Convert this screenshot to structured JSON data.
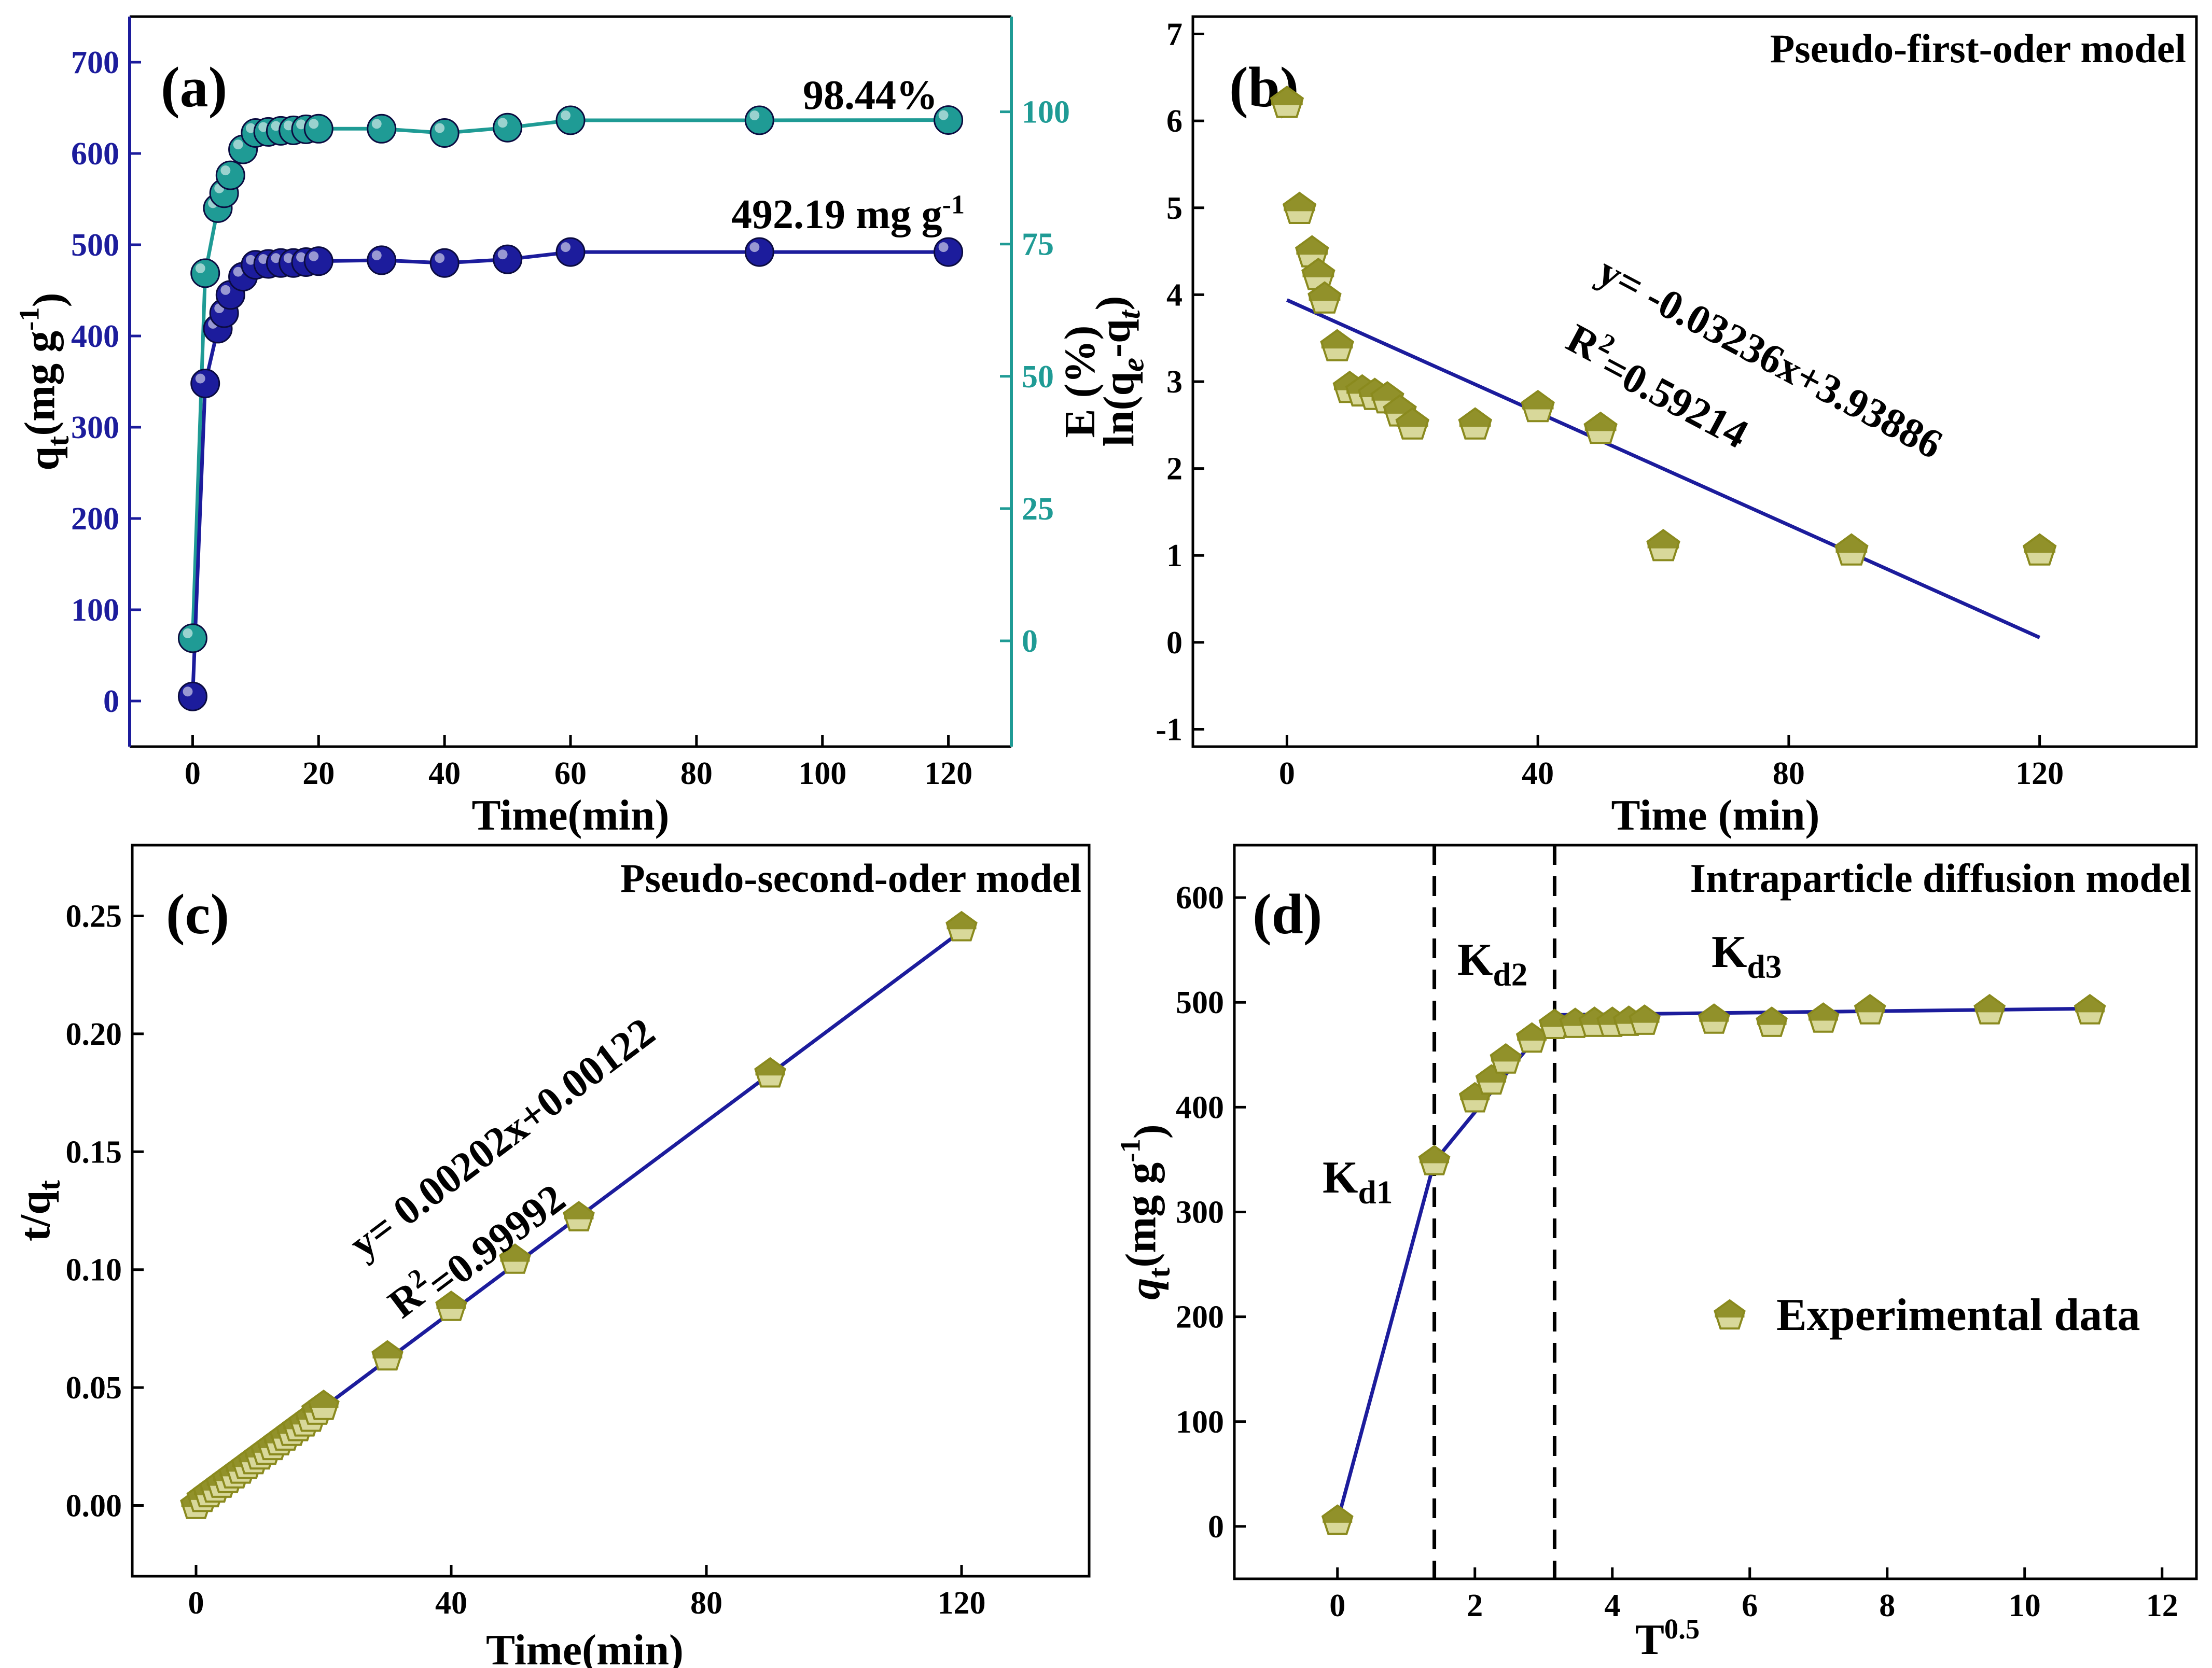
{
  "colors": {
    "navy": "#1c1c9c",
    "teal": "#1f9b95",
    "olive": "#8a8a1e",
    "olive_light": "#d8d89a",
    "frame": "#000000"
  },
  "chart_data": [
    {
      "id": "a",
      "type": "line",
      "panel_label": "(a)",
      "xlabel": "Time(min)",
      "ylabel_left": "q",
      "ylabel_left_sub": "t",
      "ylabel_left_unit": "(mg g",
      "ylabel_left_sup": "-1",
      "ylabel_left_close": ")",
      "ylabel_right": "E (%)",
      "xlim": [
        -10,
        130
      ],
      "ylim_left": [
        -50,
        750
      ],
      "ylim_right": [
        -20,
        118
      ],
      "xticks": [
        0,
        20,
        40,
        60,
        80,
        100,
        120
      ],
      "yticks_left": [
        0,
        100,
        200,
        300,
        400,
        500,
        600,
        700
      ],
      "yticks_right": [
        0,
        25,
        50,
        75,
        100
      ],
      "series": [
        {
          "axis": "left",
          "x": [
            0,
            2,
            4,
            5,
            6,
            8,
            10,
            12,
            14,
            16,
            18,
            20,
            30,
            40,
            50,
            60,
            90,
            120
          ],
          "values": [
            5,
            348,
            408,
            425,
            445,
            465,
            478,
            479,
            480,
            480,
            481,
            482,
            483,
            480,
            484,
            492,
            492,
            492
          ]
        },
        {
          "axis": "right",
          "x": [
            0,
            2,
            4,
            5,
            6,
            8,
            10,
            12,
            14,
            16,
            18,
            20,
            30,
            40,
            50,
            60,
            90,
            120
          ],
          "values": [
            0.5,
            69.5,
            81.8,
            84.6,
            88.0,
            92.9,
            96.0,
            96.2,
            96.4,
            96.5,
            96.7,
            96.8,
            96.8,
            96.0,
            97.0,
            98.4,
            98.4,
            98.44
          ]
        }
      ],
      "annotations": {
        "percent": "98.44%",
        "capacity": "492.19 mg g",
        "capacity_sup": "-1"
      }
    },
    {
      "id": "b",
      "type": "scatter",
      "panel_label": "(b)",
      "title": "Pseudo-first-oder model",
      "xlabel": "Time (min)",
      "ylabel": "ln(q",
      "ylabel_sub1": "e",
      "ylabel_mid": "-q",
      "ylabel_sub2": "t",
      "ylabel_close": ")",
      "xlim": [
        -15,
        145
      ],
      "ylim": [
        -1.2,
        7.2
      ],
      "xticks": [
        0,
        40,
        80,
        120
      ],
      "yticks": [
        -1,
        0,
        1,
        2,
        3,
        4,
        5,
        6,
        7
      ],
      "points": {
        "x": [
          0,
          2,
          4,
          5,
          6,
          8,
          10,
          12,
          14,
          16,
          18,
          20,
          30,
          40,
          50,
          60,
          90,
          120
        ],
        "y": [
          6.2,
          4.98,
          4.48,
          4.22,
          3.95,
          3.4,
          2.92,
          2.88,
          2.84,
          2.8,
          2.65,
          2.5,
          2.5,
          2.7,
          2.45,
          1.1,
          1.05,
          1.05
        ]
      },
      "fit": {
        "slope": -0.03236,
        "intercept": 3.93886,
        "x_range": [
          0,
          120
        ]
      },
      "equation": "y= -0.03236x+3.93886",
      "r2_label": "R",
      "r2_sup": "2",
      "r2_value": "=0.59214"
    },
    {
      "id": "c",
      "type": "scatter",
      "panel_label": "(c)",
      "title": "Pseudo-second-oder model",
      "xlabel": "Time(min)",
      "ylabel": "t/q",
      "ylabel_sub": "t",
      "xlim": [
        -10,
        140
      ],
      "ylim": [
        -0.03,
        0.28
      ],
      "xticks": [
        0,
        40,
        80,
        120
      ],
      "yticks": [
        0.0,
        0.05,
        0.1,
        0.15,
        0.2,
        0.25
      ],
      "ytick_labels": [
        "0.00",
        "0.05",
        "0.10",
        "0.15",
        "0.20",
        "0.25"
      ],
      "points": {
        "x": [
          0,
          1,
          2,
          3,
          4,
          5,
          6,
          7,
          8,
          9,
          10,
          11,
          12,
          13,
          14,
          15,
          16,
          17,
          18,
          19,
          20,
          30,
          40,
          50,
          60,
          90,
          120
        ],
        "y": [
          0.0,
          0.003,
          0.005,
          0.007,
          0.009,
          0.011,
          0.013,
          0.015,
          0.017,
          0.019,
          0.021,
          0.023,
          0.025,
          0.027,
          0.029,
          0.031,
          0.033,
          0.035,
          0.037,
          0.04,
          0.042,
          0.063,
          0.084,
          0.104,
          0.122,
          0.183,
          0.245
        ]
      },
      "fit": {
        "slope": 0.00202,
        "intercept": 0.00122,
        "x_range": [
          0,
          120
        ]
      },
      "equation": "y= 0.00202x+0.00122",
      "r2_label": "R",
      "r2_sup": "2",
      "r2_value": "=0.99992"
    },
    {
      "id": "d",
      "type": "scatter",
      "panel_label": "(d)",
      "title": "Intraparticle diffusion model",
      "xlabel": "T",
      "xlabel_sup": "0.5",
      "ylabel": "q",
      "ylabel_sub": "t",
      "ylabel_unit": "(mg g",
      "ylabel_sup": "-1",
      "ylabel_close": ")",
      "xlim": [
        -1.5,
        12.5
      ],
      "ylim": [
        -50,
        650
      ],
      "xticks": [
        0,
        2,
        4,
        6,
        8,
        10,
        12
      ],
      "yticks": [
        0,
        100,
        200,
        300,
        400,
        500,
        600
      ],
      "points": {
        "x": [
          0.0,
          1.41,
          2.0,
          2.24,
          2.45,
          2.83,
          3.16,
          3.46,
          3.74,
          4.0,
          4.24,
          4.47,
          5.48,
          6.32,
          7.07,
          7.75,
          9.49,
          10.95
        ],
        "y": [
          5,
          348,
          408,
          425,
          445,
          465,
          478,
          479,
          480,
          480,
          481,
          482,
          483,
          480,
          484,
          492,
          492,
          492
        ]
      },
      "fit_line": {
        "x": [
          0.0,
          1.41,
          3.16,
          10.95
        ],
        "y": [
          5,
          348,
          488,
          494
        ]
      },
      "vlines": [
        1.41,
        3.16
      ],
      "kd1": "K",
      "kd1_sub": "d1",
      "kd2": "K",
      "kd2_sub": "d2",
      "kd3": "K",
      "kd3_sub": "d3",
      "legend_label": "Experimental data"
    }
  ]
}
